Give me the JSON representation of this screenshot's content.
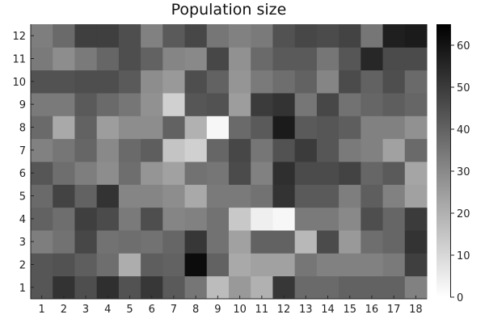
{
  "chart_data": {
    "type": "heatmap",
    "title": "Population size",
    "xlabel": "",
    "ylabel": "",
    "x_categories": [
      "1",
      "2",
      "3",
      "4",
      "5",
      "6",
      "7",
      "8",
      "9",
      "10",
      "11",
      "12",
      "13",
      "14",
      "15",
      "16",
      "17",
      "18"
    ],
    "y_categories": [
      "1",
      "2",
      "3",
      "4",
      "5",
      "6",
      "7",
      "8",
      "9",
      "10",
      "11",
      "12"
    ],
    "values": [
      [
        43,
        52,
        45,
        53,
        44,
        51,
        42,
        35,
        17,
        26,
        20,
        51,
        38,
        38,
        40,
        40,
        40,
        32
      ],
      [
        43,
        44,
        41,
        37,
        21,
        41,
        40,
        62,
        40,
        22,
        24,
        24,
        35,
        32,
        32,
        32,
        34,
        49
      ],
      [
        33,
        36,
        47,
        36,
        37,
        36,
        39,
        51,
        36,
        24,
        40,
        40,
        18,
        46,
        26,
        37,
        39,
        52
      ],
      [
        40,
        37,
        49,
        46,
        34,
        45,
        31,
        32,
        36,
        14,
        4,
        2,
        34,
        34,
        30,
        45,
        39,
        50
      ],
      [
        38,
        48,
        40,
        52,
        31,
        31,
        29,
        22,
        34,
        34,
        36,
        52,
        42,
        42,
        33,
        41,
        32,
        24
      ],
      [
        43,
        37,
        33,
        29,
        37,
        27,
        24,
        36,
        35,
        46,
        32,
        53,
        46,
        46,
        48,
        39,
        42,
        23
      ],
      [
        32,
        35,
        39,
        30,
        38,
        41,
        15,
        12,
        39,
        47,
        35,
        44,
        50,
        43,
        34,
        32,
        24,
        38
      ],
      [
        38,
        22,
        40,
        25,
        29,
        29,
        40,
        20,
        2,
        38,
        42,
        58,
        42,
        43,
        41,
        32,
        32,
        28
      ],
      [
        34,
        34,
        42,
        38,
        35,
        28,
        12,
        43,
        44,
        25,
        50,
        52,
        35,
        47,
        36,
        39,
        41,
        39
      ],
      [
        44,
        44,
        45,
        45,
        42,
        29,
        26,
        45,
        40,
        27,
        34,
        37,
        40,
        31,
        46,
        40,
        45,
        38
      ],
      [
        34,
        29,
        34,
        39,
        45,
        40,
        31,
        30,
        47,
        28,
        38,
        42,
        42,
        35,
        43,
        55,
        46,
        46
      ],
      [
        33,
        38,
        49,
        49,
        45,
        32,
        42,
        47,
        35,
        32,
        34,
        44,
        47,
        46,
        48,
        35,
        57,
        58
      ]
    ],
    "colorbar": {
      "min": 0,
      "max": 65,
      "ticks": [
        0,
        10,
        20,
        30,
        40,
        50,
        60
      ],
      "colormap": "grays_reversed",
      "low_color": "#ffffff",
      "high_color": "#000000"
    }
  }
}
